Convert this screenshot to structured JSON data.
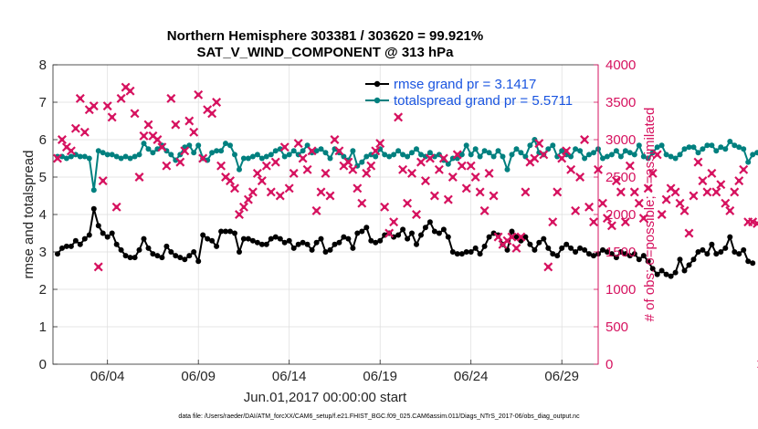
{
  "title_line1": "Northern Hemisphere 303381 / 303620 = 99.921%",
  "title_line2": "SAT_V_WIND_COMPONENT @ 313 hPa",
  "xlabel": "Jun.01,2017 00:00:00 start",
  "ylabel_left": "rmse and totalspread",
  "ylabel_right": "# of obs: o=possible; ×=assimilated",
  "footnote": "data file: /Users/raeder/DAI/ATM_forcXX/CAM6_setup/f.e21.FHIST_BGC.f09_025.CAM6assim.011/Diags_NTrS_2017-06/obs_diag_output.nc",
  "colors": {
    "rmse": "#000000",
    "spread": "#00807f",
    "obs": "#d6125f",
    "legend_text": "#1a55e0"
  },
  "chart_data": {
    "type": "line",
    "x_start": 0.25,
    "x_step": 0.25,
    "xlim": [
      0,
      30
    ],
    "ylim_left": [
      0,
      8
    ],
    "ylim_right": [
      0,
      4000
    ],
    "x_ticks": [
      {
        "x": 3,
        "label": "06/04"
      },
      {
        "x": 8,
        "label": "06/09"
      },
      {
        "x": 13,
        "label": "06/14"
      },
      {
        "x": 18,
        "label": "06/19"
      },
      {
        "x": 23,
        "label": "06/24"
      },
      {
        "x": 28,
        "label": "06/29"
      }
    ],
    "y_ticks_left": [
      0,
      1,
      2,
      3,
      4,
      5,
      6,
      7,
      8
    ],
    "y_ticks_right": [
      0,
      500,
      1000,
      1500,
      2000,
      2500,
      3000,
      3500,
      4000
    ],
    "grid": true,
    "legend_placement": "top-right",
    "series": [
      {
        "name": "rmse grand pr = 3.1417",
        "axis": "left",
        "values": [
          2.95,
          3.1,
          3.15,
          3.15,
          3.3,
          3.2,
          3.35,
          3.45,
          4.15,
          3.7,
          3.5,
          3.4,
          3.5,
          3.2,
          3.05,
          2.9,
          2.85,
          2.85,
          3.05,
          3.35,
          3.1,
          2.95,
          2.9,
          2.85,
          3.15,
          3.0,
          2.9,
          2.85,
          2.8,
          2.9,
          3.0,
          2.75,
          3.45,
          3.35,
          3.3,
          3.15,
          3.55,
          3.55,
          3.55,
          3.5,
          3.0,
          3.35,
          3.35,
          3.3,
          3.25,
          3.2,
          3.2,
          3.35,
          3.4,
          3.35,
          3.25,
          3.3,
          3.1,
          3.2,
          3.25,
          3.2,
          3.05,
          3.25,
          3.35,
          3.0,
          3.05,
          3.2,
          3.25,
          3.4,
          3.35,
          3.1,
          3.5,
          3.55,
          3.65,
          3.3,
          3.25,
          3.3,
          3.45,
          3.5,
          3.4,
          3.45,
          3.6,
          3.35,
          3.5,
          3.2,
          3.45,
          3.65,
          3.8,
          3.55,
          3.5,
          3.6,
          3.4,
          3.0,
          2.95,
          2.95,
          3.0,
          3.0,
          3.1,
          2.95,
          3.15,
          3.4,
          3.5,
          3.45,
          3.2,
          3.05,
          3.55,
          3.4,
          3.3,
          3.4,
          3.2,
          3.05,
          3.25,
          3.35,
          3.1,
          2.95,
          2.9,
          3.1,
          3.2,
          3.1,
          3.0,
          3.1,
          3.05,
          2.95,
          2.9,
          2.95,
          3.05,
          3.0,
          2.95,
          2.85,
          3.0,
          2.95,
          2.9,
          2.95,
          2.8,
          2.9,
          2.75,
          2.55,
          2.4,
          2.5,
          2.4,
          2.35,
          2.45,
          2.8,
          2.5,
          2.65,
          2.8,
          3.0,
          3.05,
          2.95,
          3.2,
          2.95,
          3.0,
          3.1,
          3.4,
          3.0,
          2.95,
          3.05,
          2.75,
          2.7
        ]
      },
      {
        "name": "totalspread grand pr = 5.5711",
        "axis": "left",
        "values": [
          5.55,
          5.55,
          5.5,
          5.55,
          5.6,
          5.55,
          5.55,
          5.5,
          4.65,
          5.7,
          5.65,
          5.6,
          5.6,
          5.55,
          5.5,
          5.55,
          5.5,
          5.55,
          5.6,
          5.9,
          5.75,
          5.65,
          5.75,
          5.85,
          5.7,
          5.6,
          5.45,
          5.6,
          5.8,
          5.85,
          5.65,
          5.85,
          5.5,
          5.45,
          5.65,
          5.7,
          5.7,
          5.9,
          5.85,
          5.6,
          5.2,
          5.5,
          5.5,
          5.55,
          5.6,
          5.5,
          5.55,
          5.6,
          5.7,
          5.75,
          5.55,
          5.6,
          5.7,
          5.6,
          5.7,
          5.85,
          5.65,
          5.7,
          5.75,
          5.65,
          5.5,
          5.75,
          5.65,
          5.55,
          5.45,
          5.7,
          5.3,
          5.4,
          5.55,
          5.6,
          5.55,
          5.75,
          5.6,
          5.55,
          5.6,
          5.7,
          5.6,
          5.55,
          5.65,
          5.75,
          5.6,
          5.55,
          5.65,
          5.55,
          5.6,
          5.45,
          5.35,
          5.5,
          5.5,
          5.6,
          5.85,
          5.6,
          5.75,
          5.55,
          5.7,
          5.65,
          5.55,
          5.7,
          5.55,
          5.2,
          5.6,
          5.75,
          5.65,
          5.55,
          5.85,
          6.0,
          5.65,
          5.6,
          5.75,
          5.85,
          5.55,
          5.7,
          5.6,
          5.55,
          5.75,
          5.7,
          5.5,
          5.6,
          5.65,
          5.75,
          5.5,
          5.55,
          5.6,
          5.7,
          5.55,
          5.7,
          5.65,
          5.6,
          5.85,
          5.55,
          5.5,
          5.65,
          5.8,
          5.85,
          5.6,
          5.55,
          5.5,
          5.6,
          5.75,
          5.8,
          5.8,
          5.65,
          5.75,
          5.85,
          5.85,
          5.7,
          5.8,
          5.75,
          5.95,
          5.85,
          5.8,
          5.75,
          5.4,
          5.6,
          5.65,
          5.65
        ]
      },
      {
        "name": "assimilated",
        "axis": "right",
        "values": [
          2750,
          3000,
          2900,
          2850,
          3150,
          3550,
          3100,
          3400,
          3450,
          1300,
          2450,
          3450,
          3300,
          2100,
          3550,
          3700,
          3650,
          3350,
          2500,
          3050,
          3200,
          3050,
          3000,
          2900,
          2650,
          3550,
          3200,
          2700,
          2850,
          3250,
          3100,
          3600,
          2750,
          3400,
          3350,
          3500,
          2650,
          2500,
          2450,
          2350,
          2000,
          2100,
          2200,
          2300,
          2550,
          2450,
          2650,
          2300,
          2700,
          2250,
          2900,
          2350,
          2550,
          2950,
          2750,
          2600,
          2850,
          2050,
          2300,
          2550,
          2250,
          3000,
          2850,
          2650,
          2700,
          2600,
          2350,
          2150,
          2550,
          2650,
          2850,
          2950,
          2100,
          1750,
          1900,
          3300,
          2600,
          2150,
          2550,
          2000,
          2700,
          2450,
          2750,
          2250,
          2600,
          2750,
          2200,
          2500,
          2800,
          2650,
          2350,
          2650,
          2500,
          2300,
          2050,
          2550,
          2250,
          1700,
          1600,
          1650,
          1700,
          1550,
          1700,
          2300,
          2700,
          2750,
          2950,
          2800,
          1300,
          1900,
          2300,
          2750,
          2850,
          2600,
          2050,
          2500,
          3000,
          2100,
          1900,
          2600,
          2150,
          1950,
          1850,
          2450,
          2300,
          1900,
          2650,
          2300,
          2150,
          1950,
          2350,
          2550,
          2800,
          2000,
          2200,
          2350,
          2300,
          2150,
          2050,
          1750,
          2250,
          2700,
          2450,
          2300,
          2550,
          2300,
          2400,
          2150,
          2050,
          2300,
          2450,
          2600,
          1900,
          1900,
          1880,
          0
        ]
      }
    ]
  }
}
